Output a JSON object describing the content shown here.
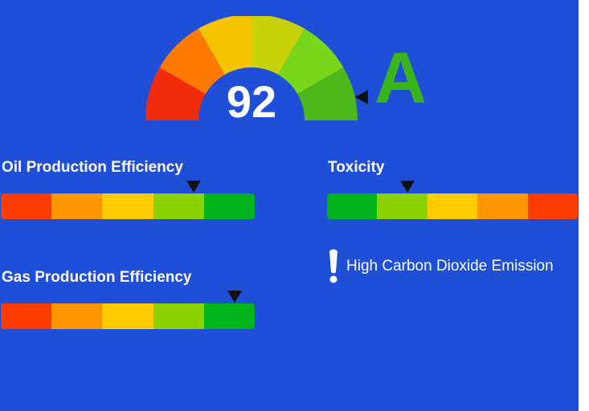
{
  "gauge": {
    "score": "92",
    "grade": "A",
    "grade_color": "#39b41a",
    "segment_colors": [
      "#f22c0a",
      "#ff7a00",
      "#f5c400",
      "#c7d20a",
      "#7ad61a",
      "#4cb81a"
    ]
  },
  "scale": {
    "colors": [
      "#ff3c00",
      "#ff9500",
      "#ffcc00",
      "#8ad200",
      "#00b51c"
    ]
  },
  "metrics": [
    {
      "label": "Oil Production Efficiency",
      "direction": "ascending",
      "level": 0.76
    },
    {
      "label": "Gas Production Efficiency",
      "direction": "ascending",
      "level": 0.92
    },
    {
      "label": "Toxicity",
      "direction": "descending",
      "level": 0.32
    }
  ],
  "alert": {
    "icon": "exclamation-icon",
    "text": "High Carbon Dioxide Emission"
  },
  "background_color": "#1f4fd6"
}
